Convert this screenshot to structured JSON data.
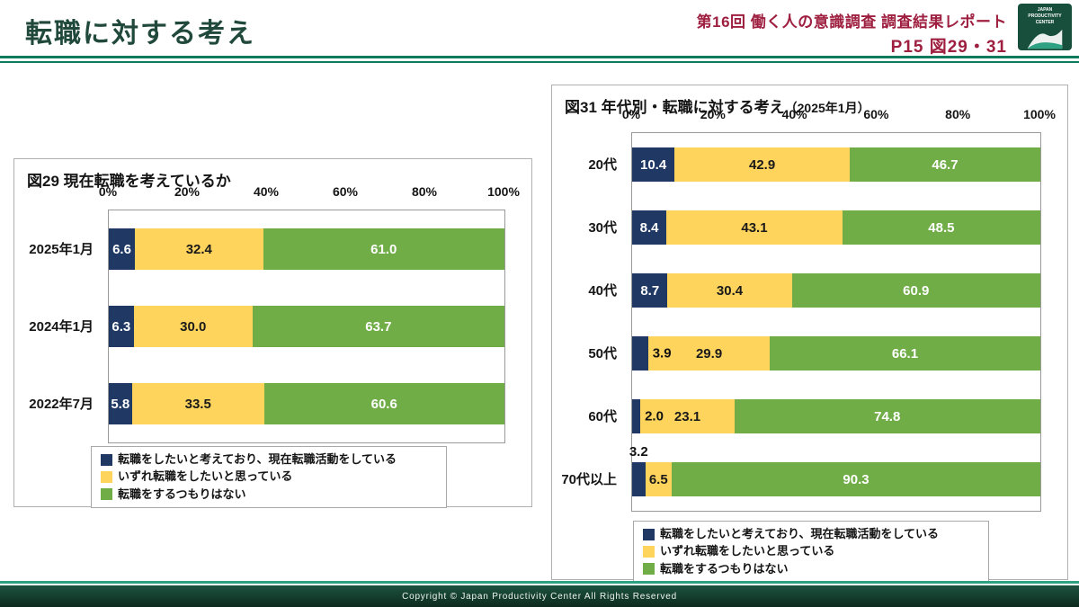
{
  "header": {
    "title": "転職に対する考え",
    "report_line": "第16回  働く人の意識調査  調査結果レポート",
    "page_ref": "P15  図29・31",
    "logo_label": "JAPAN PRODUCTIVITY CENTER"
  },
  "footer": {
    "copyright": "Copyright © Japan Productivity Center All Rights Reserved"
  },
  "colors": {
    "accent_green": "#0C7A5C",
    "title_green": "#20493B",
    "maroon": "#9E1F3F",
    "series_navy": "#1F3864",
    "series_yellow": "#FFD45C",
    "series_green": "#70AD47"
  },
  "chart_data": [
    {
      "type": "bar",
      "stacked": true,
      "orientation": "horizontal",
      "title": "図29 現在転職を考えているか",
      "categories": [
        "2025年1月",
        "2024年1月",
        "2022年7月"
      ],
      "x_ticks": [
        "0%",
        "20%",
        "40%",
        "60%",
        "80%",
        "100%"
      ],
      "xlim": [
        0,
        100
      ],
      "axis_position": "top",
      "legend_position": "bottom",
      "grid": false,
      "series": [
        {
          "name": "転職をしたいと考えており、現在転職活動をしている",
          "color": "#1F3864",
          "label_color": "#FFFFFF",
          "values": [
            6.6,
            6.3,
            5.8
          ]
        },
        {
          "name": "いずれ転職をしたいと思っている",
          "color": "#FFD45C",
          "label_color": "#1A1A1A",
          "values": [
            32.4,
            30.0,
            33.5
          ]
        },
        {
          "name": "転職をするつもりはない",
          "color": "#70AD47",
          "label_color": "#FFFFFF",
          "values": [
            61.0,
            63.7,
            60.6
          ]
        }
      ]
    },
    {
      "type": "bar",
      "stacked": true,
      "orientation": "horizontal",
      "title": "図31 年代別・転職に対する考え",
      "title_note": "（2025年1月）",
      "categories": [
        "20代",
        "30代",
        "40代",
        "50代",
        "60代",
        "70代以上"
      ],
      "x_ticks": [
        "0%",
        "20%",
        "40%",
        "60%",
        "80%",
        "100%"
      ],
      "xlim": [
        0,
        100
      ],
      "axis_position": "top",
      "legend_position": "bottom",
      "grid": false,
      "series": [
        {
          "name": "転職をしたいと考えており、現在転職活動をしている",
          "color": "#1F3864",
          "label_color": "#FFFFFF",
          "values": [
            10.4,
            8.4,
            8.7,
            3.9,
            2.0,
            3.2
          ],
          "label_pos": [
            "in",
            "in",
            "in",
            "after",
            "after",
            "above"
          ]
        },
        {
          "name": "いずれ転職をしたいと思っている",
          "color": "#FFD45C",
          "label_color": "#1A1A1A",
          "values": [
            42.9,
            43.1,
            30.4,
            29.9,
            23.1,
            6.5
          ]
        },
        {
          "name": "転職をするつもりはない",
          "color": "#70AD47",
          "label_color": "#FFFFFF",
          "values": [
            46.7,
            48.5,
            60.9,
            66.1,
            74.8,
            90.3
          ]
        }
      ]
    }
  ]
}
